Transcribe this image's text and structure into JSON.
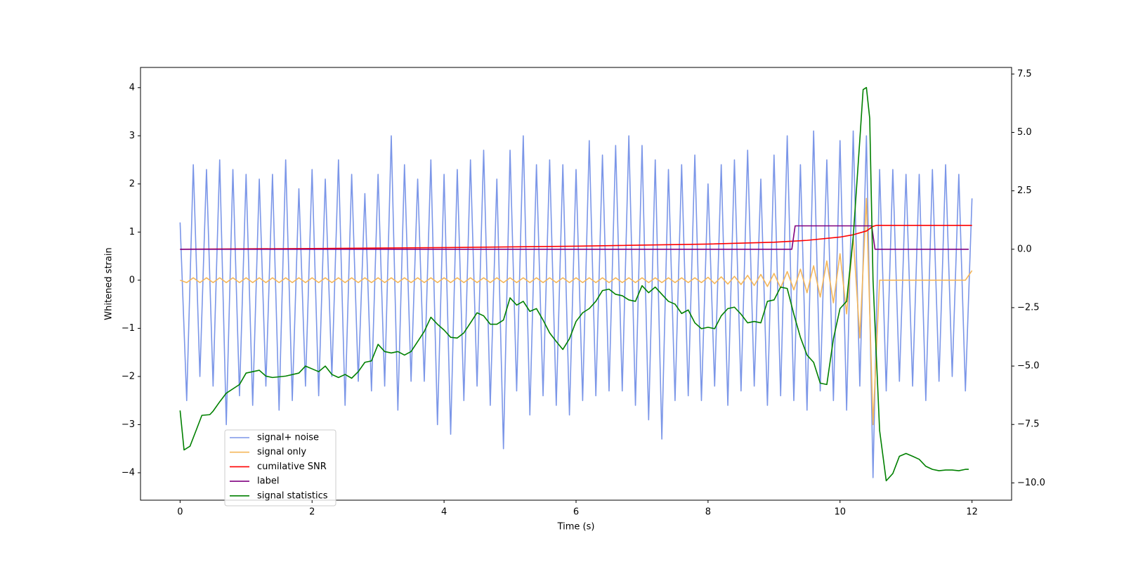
{
  "chart_data": {
    "type": "line",
    "xlabel": "Time (s)",
    "ylabel": "Whitened strain",
    "xlim": [
      -0.6,
      12.6
    ],
    "xticks": [
      0,
      2,
      4,
      6,
      8,
      10,
      12
    ],
    "ylim": [
      -4.57,
      4.42
    ],
    "yticks": [
      {
        "value": -4,
        "label": "−4"
      },
      {
        "value": -3,
        "label": "−3"
      },
      {
        "value": -2,
        "label": "−2"
      },
      {
        "value": -1,
        "label": "−1"
      },
      0,
      1,
      2,
      3,
      4
    ],
    "y2lim": [
      -10.74,
      7.78
    ],
    "y2ticks": [
      {
        "value": -10,
        "label": "−10.0"
      },
      {
        "value": -7.5,
        "label": "−7.5"
      },
      {
        "value": -5,
        "label": "−5.0"
      },
      {
        "value": -2.5,
        "label": "−2.5"
      },
      {
        "value": 0,
        "label": "0.0"
      },
      2.5,
      {
        "value": 5,
        "label": "5.0"
      },
      7.5
    ],
    "grid": false,
    "series": [
      {
        "name": "signal+ noise",
        "color": "#7b96e8",
        "x": [
          0,
          0.1,
          0.2,
          0.3,
          0.4,
          0.5,
          0.6,
          0.7,
          0.8,
          0.9,
          1,
          1.1,
          1.2,
          1.3,
          1.4,
          1.5,
          1.6,
          1.7,
          1.8,
          1.9,
          2,
          2.1,
          2.2,
          2.3,
          2.4,
          2.5,
          2.6,
          2.7,
          2.8,
          2.9,
          3,
          3.1,
          3.2,
          3.3,
          3.4,
          3.5,
          3.6,
          3.7,
          3.8,
          3.9,
          4,
          4.1,
          4.2,
          4.3,
          4.4,
          4.5,
          4.6,
          4.7,
          4.8,
          4.9,
          5,
          5.1,
          5.2,
          5.3,
          5.4,
          5.5,
          5.6,
          5.7,
          5.8,
          5.9,
          6,
          6.1,
          6.2,
          6.3,
          6.4,
          6.5,
          6.6,
          6.7,
          6.8,
          6.9,
          7,
          7.1,
          7.2,
          7.3,
          7.4,
          7.5,
          7.6,
          7.7,
          7.8,
          7.9,
          8,
          8.1,
          8.2,
          8.3,
          8.4,
          8.5,
          8.6,
          8.7,
          8.8,
          8.9,
          9,
          9.1,
          9.2,
          9.3,
          9.4,
          9.5,
          9.6,
          9.7,
          9.8,
          9.9,
          10,
          10.1,
          10.2,
          10.3,
          10.4,
          10.5,
          10.6,
          10.7,
          10.8,
          10.9,
          11,
          11.1,
          11.2,
          11.3,
          11.4,
          11.5,
          11.6,
          11.7,
          11.8,
          11.9,
          12
        ],
        "values": [
          1.2,
          -2.5,
          2.4,
          -2.0,
          2.3,
          -2.2,
          2.5,
          -3.0,
          2.3,
          -2.4,
          2.2,
          -2.6,
          2.1,
          -2.2,
          2.2,
          -2.7,
          2.5,
          -2.5,
          1.9,
          -2.2,
          2.3,
          -2.4,
          2.1,
          -2.0,
          2.5,
          -2.6,
          2.2,
          -2.1,
          1.8,
          -2.3,
          2.2,
          -2.2,
          3.0,
          -2.7,
          2.4,
          -2.1,
          2.1,
          -2.1,
          2.5,
          -3.0,
          2.2,
          -3.2,
          2.3,
          -2.5,
          2.5,
          -2.2,
          2.7,
          -2.6,
          2.1,
          -3.5,
          2.7,
          -2.3,
          3.0,
          -2.8,
          2.4,
          -2.4,
          2.5,
          -2.6,
          2.4,
          -2.8,
          2.3,
          -2.5,
          2.9,
          -2.4,
          2.6,
          -2.3,
          2.8,
          -2.3,
          3.0,
          -2.6,
          2.8,
          -2.9,
          2.5,
          -3.3,
          2.3,
          -2.5,
          2.4,
          -2.4,
          2.6,
          -2.5,
          2.0,
          -2.2,
          2.4,
          -2.6,
          2.5,
          -2.3,
          2.7,
          -2.2,
          2.1,
          -2.6,
          2.6,
          -2.4,
          3.0,
          -2.5,
          2.4,
          -2.7,
          3.1,
          -2.3,
          2.5,
          -2.5,
          2.9,
          -2.7,
          3.1,
          -2.2,
          3.0,
          -4.1,
          2.3,
          -2.3,
          2.3,
          -2.1,
          2.2,
          -2.2,
          2.2,
          -2.5,
          2.3,
          -2.1,
          2.4,
          -2.0,
          2.2,
          -2.3,
          1.7
        ]
      },
      {
        "name": "signal only",
        "color": "#f5b75a",
        "x": [
          0,
          0.1,
          0.2,
          0.3,
          0.4,
          0.5,
          0.6,
          0.7,
          0.8,
          0.9,
          1,
          1.1,
          1.2,
          1.3,
          1.4,
          1.5,
          1.6,
          1.7,
          1.8,
          1.9,
          2,
          2.1,
          2.2,
          2.3,
          2.4,
          2.5,
          2.6,
          2.7,
          2.8,
          2.9,
          3,
          3.1,
          3.2,
          3.3,
          3.4,
          3.5,
          3.6,
          3.7,
          3.8,
          3.9,
          4,
          4.1,
          4.2,
          4.3,
          4.4,
          4.5,
          4.6,
          4.7,
          4.8,
          4.9,
          5,
          5.1,
          5.2,
          5.3,
          5.4,
          5.5,
          5.6,
          5.7,
          5.8,
          5.9,
          6,
          6.1,
          6.2,
          6.3,
          6.4,
          6.5,
          6.6,
          6.7,
          6.8,
          6.9,
          7,
          7.1,
          7.2,
          7.3,
          7.4,
          7.5,
          7.6,
          7.7,
          7.8,
          7.9,
          8,
          8.1,
          8.2,
          8.3,
          8.4,
          8.5,
          8.6,
          8.7,
          8.8,
          8.9,
          9,
          9.1,
          9.2,
          9.3,
          9.4,
          9.5,
          9.6,
          9.7,
          9.8,
          9.9,
          10,
          10.1,
          10.2,
          10.3,
          10.4,
          10.5,
          10.6,
          10.7,
          10.8,
          10.9,
          11,
          11.1,
          11.2,
          11.3,
          11.4,
          11.5,
          11.6,
          11.7,
          11.8,
          11.9,
          12
        ],
        "values": [
          0,
          -0.05,
          0.05,
          -0.05,
          0.05,
          -0.05,
          0.05,
          -0.05,
          0.05,
          -0.05,
          0.05,
          -0.05,
          0.05,
          -0.05,
          0.05,
          -0.05,
          0.05,
          -0.05,
          0.05,
          -0.05,
          0.05,
          -0.05,
          0.05,
          -0.05,
          0.05,
          -0.05,
          0.05,
          -0.05,
          0.05,
          -0.05,
          0.05,
          -0.05,
          0.05,
          -0.05,
          0.05,
          -0.05,
          0.05,
          -0.05,
          0.05,
          -0.05,
          0.05,
          -0.05,
          0.05,
          -0.05,
          0.05,
          -0.05,
          0.05,
          -0.05,
          0.05,
          -0.05,
          0.05,
          -0.05,
          0.05,
          -0.05,
          0.05,
          -0.05,
          0.05,
          -0.05,
          0.05,
          -0.05,
          0.05,
          -0.05,
          0.05,
          -0.05,
          0.05,
          -0.05,
          0.05,
          -0.05,
          0.05,
          -0.05,
          0.05,
          -0.05,
          0.05,
          -0.05,
          0.05,
          -0.05,
          0.05,
          -0.05,
          0.05,
          -0.05,
          0.06,
          -0.07,
          0.07,
          -0.08,
          0.08,
          -0.09,
          0.1,
          -0.11,
          0.12,
          -0.13,
          0.14,
          -0.16,
          0.18,
          -0.2,
          0.23,
          -0.26,
          0.3,
          -0.35,
          0.4,
          -0.47,
          0.55,
          -0.7,
          0.9,
          -1.2,
          1.7,
          -3.0,
          0,
          0,
          0,
          0,
          0,
          0,
          0,
          0,
          0,
          0,
          0,
          0,
          0,
          0,
          0.2
        ]
      },
      {
        "name": "cumilative SNR",
        "color": "#ff0000",
        "axis": "y2",
        "x": [
          0,
          2,
          4,
          6,
          8,
          9,
          9.5,
          10,
          10.2,
          10.4,
          10.5,
          10.55,
          12
        ],
        "values": [
          0.0,
          0.03,
          0.07,
          0.13,
          0.22,
          0.3,
          0.38,
          0.52,
          0.62,
          0.78,
          0.98,
          1.02,
          1.02
        ]
      },
      {
        "name": "label",
        "color": "#800080",
        "axis": "y2",
        "x": [
          0,
          9.27,
          9.32,
          10.48,
          10.53,
          11.95
        ],
        "values": [
          0,
          0,
          1,
          1,
          0,
          0
        ]
      },
      {
        "name": "signal statistics",
        "color": "#008000",
        "axis": "y2",
        "x": [
          0,
          0.06,
          0.15,
          0.25,
          0.33,
          0.45,
          0.5,
          0.6,
          0.7,
          0.9,
          1,
          1.1,
          1.2,
          1.3,
          1.4,
          1.6,
          1.8,
          1.9,
          2,
          2.1,
          2.2,
          2.3,
          2.4,
          2.5,
          2.6,
          2.7,
          2.8,
          2.9,
          3,
          3.1,
          3.2,
          3.3,
          3.4,
          3.5,
          3.6,
          3.7,
          3.8,
          3.9,
          4,
          4.1,
          4.2,
          4.3,
          4.4,
          4.5,
          4.6,
          4.7,
          4.8,
          4.9,
          5,
          5.1,
          5.2,
          5.3,
          5.4,
          5.5,
          5.6,
          5.7,
          5.8,
          5.9,
          6,
          6.1,
          6.2,
          6.3,
          6.4,
          6.5,
          6.6,
          6.7,
          6.8,
          6.9,
          7,
          7.1,
          7.2,
          7.3,
          7.4,
          7.5,
          7.6,
          7.7,
          7.8,
          7.9,
          8,
          8.1,
          8.2,
          8.3,
          8.4,
          8.5,
          8.6,
          8.7,
          8.8,
          8.9,
          9,
          9.1,
          9.2,
          9.3,
          9.4,
          9.5,
          9.6,
          9.7,
          9.8,
          9.9,
          10,
          10.1,
          10.2,
          10.3,
          10.35,
          10.4,
          10.45,
          10.5,
          10.6,
          10.7,
          10.8,
          10.9,
          11,
          11.1,
          11.2,
          11.3,
          11.4,
          11.5,
          11.6,
          11.7,
          11.8,
          11.9,
          11.95
        ],
        "values": [
          -6.9,
          -8.59,
          -8.43,
          -7.7,
          -7.11,
          -7.08,
          -6.93,
          -6.53,
          -6.16,
          -5.79,
          -5.3,
          -5.24,
          -5.18,
          -5.43,
          -5.49,
          -5.43,
          -5.3,
          -5.0,
          -5.12,
          -5.24,
          -5.0,
          -5.36,
          -5.49,
          -5.36,
          -5.52,
          -5.24,
          -4.84,
          -4.78,
          -4.07,
          -4.38,
          -4.44,
          -4.38,
          -4.53,
          -4.38,
          -3.95,
          -3.52,
          -2.91,
          -3.21,
          -3.46,
          -3.77,
          -3.8,
          -3.58,
          -3.15,
          -2.72,
          -2.85,
          -3.21,
          -3.21,
          -3.03,
          -2.08,
          -2.39,
          -2.23,
          -2.66,
          -2.54,
          -3.03,
          -3.58,
          -3.95,
          -4.29,
          -3.83,
          -3.09,
          -2.72,
          -2.54,
          -2.23,
          -1.77,
          -1.71,
          -1.93,
          -1.99,
          -2.17,
          -2.23,
          -1.56,
          -1.86,
          -1.62,
          -1.93,
          -2.23,
          -2.35,
          -2.75,
          -2.6,
          -3.15,
          -3.4,
          -3.34,
          -3.4,
          -2.85,
          -2.54,
          -2.48,
          -2.78,
          -3.15,
          -3.09,
          -3.15,
          -2.23,
          -2.17,
          -1.62,
          -1.68,
          -2.78,
          -3.77,
          -4.53,
          -4.84,
          -5.73,
          -5.79,
          -3.83,
          -2.54,
          -2.23,
          0.53,
          4.68,
          6.83,
          6.92,
          5.6,
          -1.31,
          -7.76,
          -9.91,
          -9.6,
          -8.86,
          -8.74,
          -8.86,
          -8.99,
          -9.29,
          -9.42,
          -9.48,
          -9.45,
          -9.45,
          -9.48,
          -9.42,
          -9.42
        ]
      }
    ]
  }
}
